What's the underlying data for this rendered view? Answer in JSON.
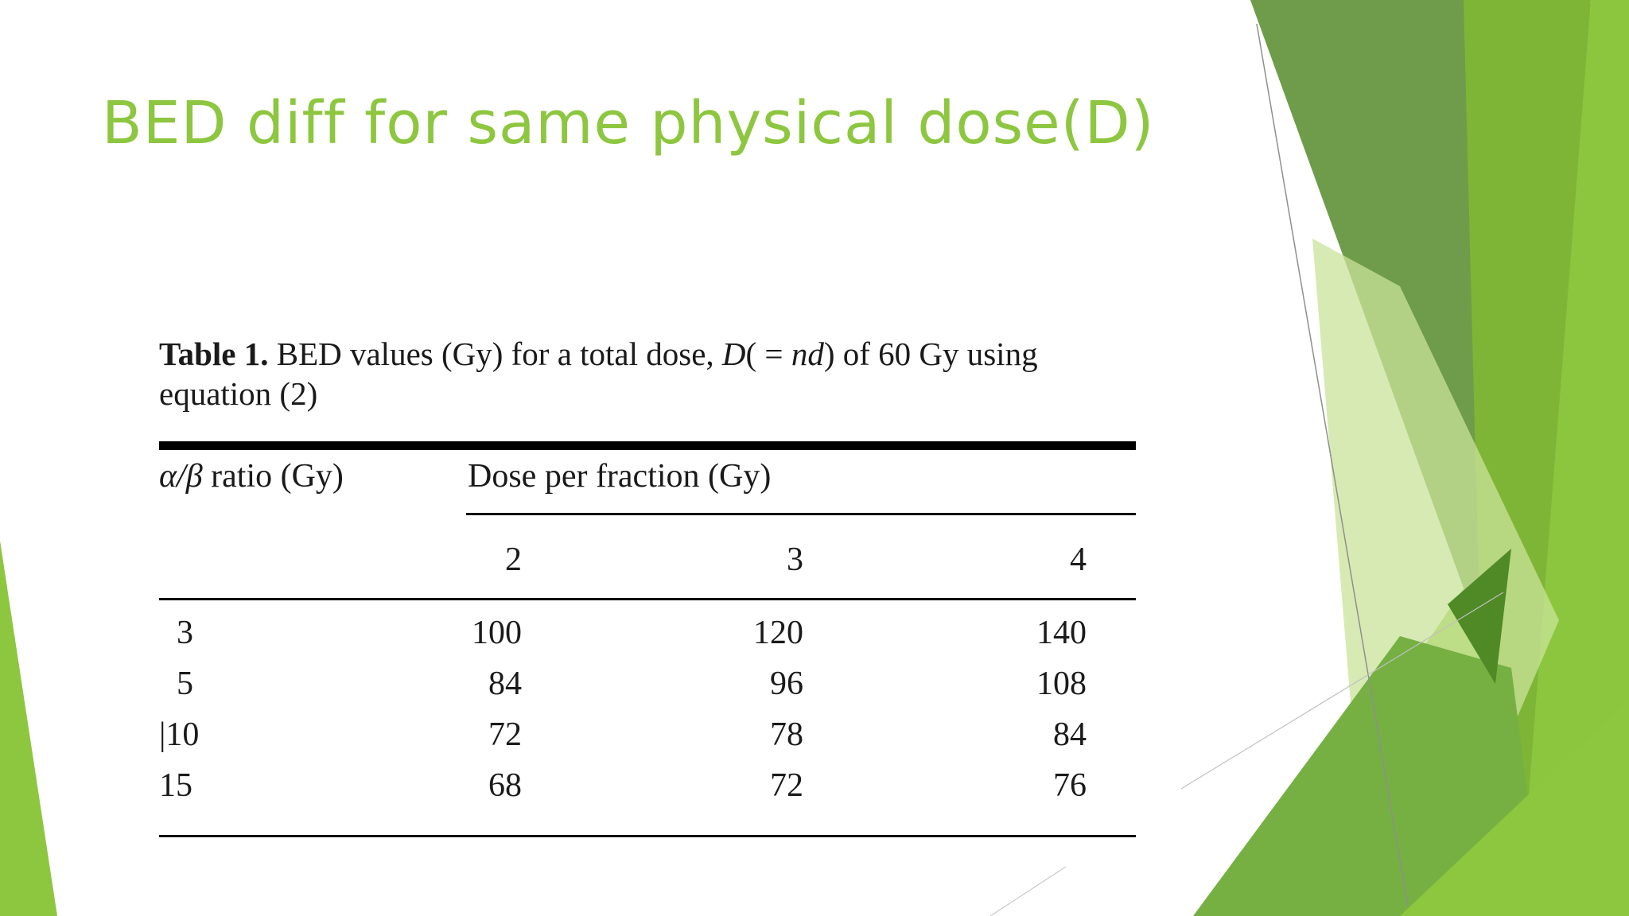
{
  "slide": {
    "title": "BED diff for same physical dose(D)",
    "colors": {
      "accent": "#8dc63f",
      "dark_green": "#5a8f2e",
      "light_green": "#c5e08a"
    }
  },
  "table": {
    "caption_label": "Table 1.",
    "caption_part1": " BED values (Gy) for a total dose, ",
    "caption_italic1": "D",
    "caption_part2": "( = ",
    "caption_italic2": "nd",
    "caption_part3": ") of 60 Gy using",
    "caption_line2": "equation (2)",
    "header_alpha": "α/β",
    "header_ratio": " ratio (Gy)",
    "header_dose": "Dose per fraction (Gy)",
    "dose_columns": [
      "2",
      "3",
      "4"
    ],
    "rows": [
      {
        "ratio": "3",
        "values": [
          "100",
          "120",
          "140"
        ]
      },
      {
        "ratio": "5",
        "values": [
          "84",
          "96",
          "108"
        ]
      },
      {
        "ratio": "|10",
        "values": [
          "72",
          "78",
          "84"
        ]
      },
      {
        "ratio": "15",
        "values": [
          "68",
          "72",
          "76"
        ]
      }
    ]
  }
}
